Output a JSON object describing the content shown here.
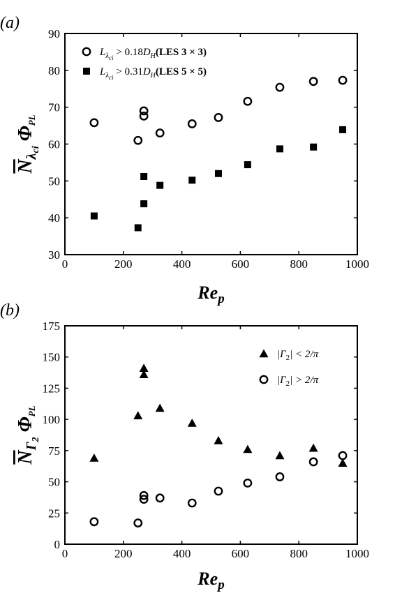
{
  "chart_data": [
    {
      "type": "scatter",
      "panel_label": "(a)",
      "xlabel": "Re_p",
      "ylabel_parts": {
        "main": "N",
        "sub": "λ",
        "subsub": "ci",
        "tail": "Φ",
        "tailsub": "PL"
      },
      "xlim": [
        0,
        1000
      ],
      "ylim": [
        30,
        90
      ],
      "xticks": [
        0,
        200,
        400,
        600,
        800,
        1000
      ],
      "yticks": [
        30,
        40,
        50,
        60,
        70,
        80,
        90
      ],
      "legend_position": "top-left",
      "grid": false,
      "series": [
        {
          "name": "L_{λ_ci} > 0.18 D_H (LES 3 × 3)",
          "legend_text": {
            "pre": "L",
            "sub": "λ",
            "subsub": "ci",
            "rel": " > 0.18",
            "d": "D",
            "dsub": "H",
            "post": "(LES 3 × 3)"
          },
          "marker": "circle-open",
          "x": [
            100,
            250,
            270,
            270,
            325,
            435,
            525,
            625,
            735,
            850,
            950
          ],
          "y": [
            65.8,
            61.0,
            69.0,
            67.6,
            63.0,
            65.5,
            67.2,
            71.6,
            75.4,
            77.0,
            77.3
          ]
        },
        {
          "name": "L_{λ_ci} > 0.31 D_H (LES 5 × 5)",
          "legend_text": {
            "pre": "L",
            "sub": "λ",
            "subsub": "ci",
            "rel": " > 0.31",
            "d": "D",
            "dsub": "H",
            "post": "(LES 5 × 5)"
          },
          "marker": "square-filled",
          "x": [
            100,
            250,
            270,
            270,
            325,
            435,
            525,
            625,
            735,
            850,
            950
          ],
          "y": [
            40.5,
            37.3,
            51.2,
            43.8,
            48.8,
            50.2,
            52.0,
            54.4,
            58.7,
            59.2,
            63.9
          ]
        }
      ]
    },
    {
      "type": "scatter",
      "panel_label": "(b)",
      "xlabel": "Re_p",
      "ylabel_parts": {
        "main": "N",
        "sub": "Γ",
        "subsub": "2",
        "tail": "Φ",
        "tailsub": "PL"
      },
      "xlim": [
        0,
        1000
      ],
      "ylim": [
        0,
        175
      ],
      "xticks": [
        0,
        200,
        400,
        600,
        800,
        1000
      ],
      "yticks": [
        0,
        25,
        50,
        75,
        100,
        125,
        150,
        175
      ],
      "legend_position": "top-right",
      "grid": false,
      "series": [
        {
          "name": "|Γ_2| < 2/π",
          "legend_text": {
            "pre": "|Γ",
            "sub": "2",
            "post": "| < 2/π"
          },
          "marker": "triangle-filled",
          "x": [
            100,
            250,
            270,
            270,
            325,
            435,
            525,
            625,
            735,
            850,
            950
          ],
          "y": [
            69,
            103,
            141,
            136,
            109,
            97,
            83,
            76,
            71,
            77,
            65
          ]
        },
        {
          "name": "|Γ_2| > 2/π",
          "legend_text": {
            "pre": "|Γ",
            "sub": "2",
            "post": "| > 2/π"
          },
          "marker": "circle-open",
          "x": [
            100,
            250,
            270,
            270,
            325,
            435,
            525,
            625,
            735,
            850,
            950
          ],
          "y": [
            18,
            17,
            36,
            39,
            37,
            33,
            42.5,
            49,
            54,
            66,
            71
          ]
        }
      ]
    }
  ]
}
